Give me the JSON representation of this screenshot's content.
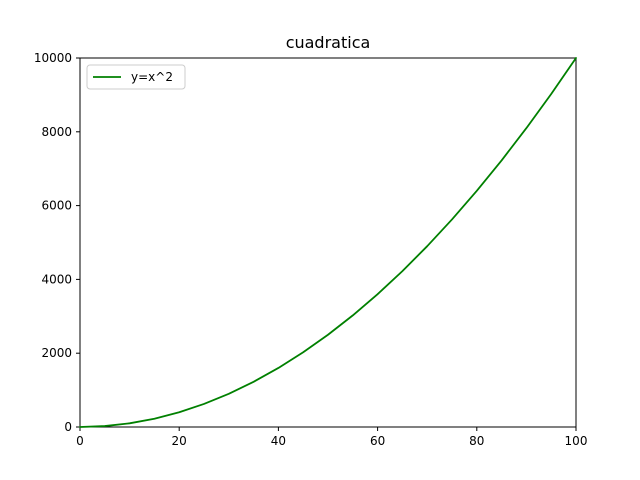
{
  "chart_data": {
    "type": "line",
    "title": "cuadratica",
    "xlabel": "",
    "ylabel": "",
    "xlim": [
      0,
      100
    ],
    "ylim": [
      0,
      10000
    ],
    "xticks": [
      0,
      20,
      40,
      60,
      80,
      100
    ],
    "yticks": [
      0,
      2000,
      4000,
      6000,
      8000,
      10000
    ],
    "grid": false,
    "legend": {
      "placement": "upper-left"
    },
    "series": [
      {
        "name": "y=x^2",
        "color": "#008000",
        "x": [
          0,
          5,
          10,
          15,
          20,
          25,
          30,
          35,
          40,
          45,
          50,
          55,
          60,
          65,
          70,
          75,
          80,
          85,
          90,
          95,
          100
        ],
        "y": [
          0,
          25,
          100,
          225,
          400,
          625,
          900,
          1225,
          1600,
          2025,
          2500,
          3025,
          3600,
          4225,
          4900,
          5625,
          6400,
          7225,
          8100,
          9025,
          10000
        ]
      }
    ]
  }
}
